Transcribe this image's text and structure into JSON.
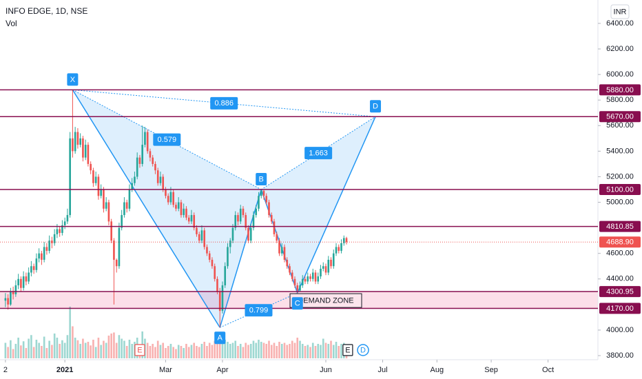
{
  "chart_data": {
    "type": "candlestick",
    "title": "INFO EDGE, 1D, NSE",
    "volume_label": "Vol",
    "currency": "INR",
    "up_color": "#26a69a",
    "down_color": "#ef5350",
    "level_color": "#880e4f",
    "pattern_color": "#2196f3",
    "ohlc": [
      [
        4230,
        4290,
        4180,
        4250
      ],
      [
        4250,
        4280,
        4160,
        4200
      ],
      [
        4200,
        4330,
        4190,
        4300
      ],
      [
        4300,
        4340,
        4240,
        4280
      ],
      [
        4280,
        4390,
        4260,
        4350
      ],
      [
        4350,
        4440,
        4320,
        4400
      ],
      [
        4400,
        4420,
        4300,
        4330
      ],
      [
        4330,
        4460,
        4310,
        4420
      ],
      [
        4420,
        4450,
        4350,
        4380
      ],
      [
        4380,
        4490,
        4360,
        4450
      ],
      [
        4450,
        4540,
        4420,
        4500
      ],
      [
        4500,
        4520,
        4440,
        4470
      ],
      [
        4470,
        4600,
        4450,
        4560
      ],
      [
        4560,
        4640,
        4530,
        4600
      ],
      [
        4600,
        4620,
        4510,
        4550
      ],
      [
        4550,
        4690,
        4530,
        4650
      ],
      [
        4650,
        4680,
        4590,
        4620
      ],
      [
        4620,
        4740,
        4600,
        4700
      ],
      [
        4700,
        4730,
        4640,
        4680
      ],
      [
        4680,
        4790,
        4660,
        4750
      ],
      [
        4750,
        4830,
        4720,
        4790
      ],
      [
        4790,
        4810,
        4730,
        4760
      ],
      [
        4760,
        4860,
        4740,
        4820
      ],
      [
        4820,
        4880,
        4790,
        4850
      ],
      [
        4850,
        4950,
        4830,
        4900
      ],
      [
        4900,
        5550,
        4880,
        5500
      ],
      [
        5500,
        5880,
        5350,
        5400
      ],
      [
        5400,
        5590,
        5380,
        5550
      ],
      [
        5550,
        5580,
        5420,
        5450
      ],
      [
        5450,
        5540,
        5430,
        5500
      ],
      [
        5500,
        5520,
        5320,
        5350
      ],
      [
        5350,
        5490,
        5330,
        5450
      ],
      [
        5450,
        5470,
        5280,
        5300
      ],
      [
        5300,
        5320,
        5220,
        5250
      ],
      [
        5250,
        5270,
        5120,
        5150
      ],
      [
        5150,
        5240,
        5130,
        5200
      ],
      [
        5200,
        5220,
        5020,
        5050
      ],
      [
        5050,
        5140,
        5030,
        5100
      ],
      [
        5100,
        5120,
        4920,
        4950
      ],
      [
        4950,
        5040,
        4930,
        5000
      ],
      [
        5000,
        5020,
        4820,
        4850
      ],
      [
        4850,
        4870,
        4680,
        4700
      ],
      [
        4700,
        4720,
        4200,
        4550
      ],
      [
        4550,
        4560,
        4450,
        4500
      ],
      [
        4500,
        4840,
        4480,
        4800
      ],
      [
        4800,
        4940,
        4780,
        4900
      ],
      [
        4900,
        5040,
        4880,
        5000
      ],
      [
        5000,
        5020,
        4920,
        4950
      ],
      [
        4950,
        5140,
        4930,
        5100
      ],
      [
        5100,
        5190,
        5080,
        5150
      ],
      [
        5150,
        5240,
        5130,
        5200
      ],
      [
        5200,
        5390,
        5180,
        5350
      ],
      [
        5350,
        5370,
        5270,
        5300
      ],
      [
        5300,
        5600,
        5280,
        5450
      ],
      [
        5450,
        5590,
        5430,
        5550
      ],
      [
        5550,
        5570,
        5380,
        5400
      ],
      [
        5400,
        5420,
        5320,
        5350
      ],
      [
        5350,
        5370,
        5280,
        5300
      ],
      [
        5300,
        5320,
        5220,
        5250
      ],
      [
        5250,
        5270,
        5130,
        5150
      ],
      [
        5150,
        5240,
        5130,
        5200
      ],
      [
        5200,
        5220,
        5080,
        5100
      ],
      [
        5100,
        5120,
        5030,
        5050
      ],
      [
        5050,
        5070,
        4980,
        5000
      ],
      [
        5000,
        5120,
        4980,
        5080
      ],
      [
        5080,
        5100,
        4960,
        4980
      ],
      [
        4980,
        5000,
        4930,
        4950
      ],
      [
        4950,
        5040,
        4930,
        5000
      ],
      [
        5000,
        5020,
        4880,
        4900
      ],
      [
        4900,
        4990,
        4880,
        4950
      ],
      [
        4950,
        4970,
        4860,
        4880
      ],
      [
        4880,
        4900,
        4830,
        4850
      ],
      [
        4850,
        4940,
        4830,
        4900
      ],
      [
        4900,
        4920,
        4780,
        4800
      ],
      [
        4800,
        4820,
        4730,
        4750
      ],
      [
        4750,
        4770,
        4680,
        4700
      ],
      [
        4700,
        4820,
        4680,
        4780
      ],
      [
        4780,
        4800,
        4630,
        4650
      ],
      [
        4650,
        4670,
        4580,
        4600
      ],
      [
        4600,
        4620,
        4530,
        4550
      ],
      [
        4550,
        4570,
        4480,
        4500
      ],
      [
        4500,
        4520,
        4380,
        4400
      ],
      [
        4400,
        4420,
        4280,
        4300
      ],
      [
        4300,
        4330,
        4020,
        4150
      ],
      [
        4150,
        4380,
        4130,
        4350
      ],
      [
        4350,
        4530,
        4330,
        4500
      ],
      [
        4500,
        4680,
        4480,
        4650
      ],
      [
        4650,
        4720,
        4600,
        4700
      ],
      [
        4700,
        4830,
        4680,
        4800
      ],
      [
        4800,
        4930,
        4780,
        4900
      ],
      [
        4900,
        4920,
        4820,
        4850
      ],
      [
        4850,
        4980,
        4830,
        4950
      ],
      [
        4950,
        4970,
        4880,
        4900
      ],
      [
        4900,
        4920,
        4780,
        4800
      ],
      [
        4800,
        4820,
        4680,
        4700
      ],
      [
        4700,
        4830,
        4680,
        4800
      ],
      [
        4800,
        4930,
        4780,
        4900
      ],
      [
        4900,
        4980,
        4880,
        4950
      ],
      [
        4950,
        5080,
        4930,
        5050
      ],
      [
        5050,
        5100,
        5030,
        5090
      ],
      [
        5090,
        5095,
        5020,
        5050
      ],
      [
        5050,
        5070,
        4980,
        5000
      ],
      [
        5000,
        5020,
        4880,
        4900
      ],
      [
        4900,
        4920,
        4830,
        4850
      ],
      [
        4850,
        4870,
        4730,
        4750
      ],
      [
        4750,
        4770,
        4680,
        4700
      ],
      [
        4700,
        4720,
        4580,
        4600
      ],
      [
        4600,
        4680,
        4580,
        4650
      ],
      [
        4650,
        4670,
        4530,
        4550
      ],
      [
        4550,
        4570,
        4480,
        4500
      ],
      [
        4500,
        4520,
        4430,
        4450
      ],
      [
        4450,
        4470,
        4380,
        4400
      ],
      [
        4400,
        4420,
        4330,
        4350
      ],
      [
        4350,
        4370,
        4290,
        4310
      ],
      [
        4310,
        4380,
        4300,
        4350
      ],
      [
        4350,
        4430,
        4330,
        4400
      ],
      [
        4400,
        4420,
        4360,
        4380
      ],
      [
        4380,
        4450,
        4360,
        4420
      ],
      [
        4420,
        4440,
        4380,
        4400
      ],
      [
        4400,
        4480,
        4380,
        4450
      ],
      [
        4450,
        4470,
        4360,
        4380
      ],
      [
        4380,
        4450,
        4360,
        4420
      ],
      [
        4420,
        4510,
        4400,
        4480
      ],
      [
        4480,
        4530,
        4460,
        4500
      ],
      [
        4500,
        4520,
        4430,
        4450
      ],
      [
        4450,
        4580,
        4430,
        4550
      ],
      [
        4550,
        4570,
        4480,
        4500
      ],
      [
        4500,
        4630,
        4480,
        4600
      ],
      [
        4600,
        4680,
        4580,
        4650
      ],
      [
        4650,
        4670,
        4600,
        4620
      ],
      [
        4620,
        4710,
        4600,
        4680
      ],
      [
        4680,
        4740,
        4660,
        4720
      ],
      [
        4720,
        4730,
        4670,
        4688.9
      ]
    ],
    "volume": [
      30,
      22,
      35,
      18,
      28,
      40,
      25,
      33,
      20,
      38,
      45,
      22,
      36,
      30,
      24,
      42,
      20,
      34,
      26,
      48,
      40,
      28,
      35,
      30,
      45,
      100,
      62,
      40,
      35,
      28,
      38,
      30,
      32,
      25,
      36,
      22,
      40,
      26,
      34,
      30,
      44,
      48,
      50,
      30,
      45,
      38,
      34,
      24,
      36,
      28,
      32,
      40,
      26,
      52,
      38,
      30,
      24,
      28,
      22,
      34,
      26,
      30,
      20,
      24,
      28,
      22,
      18,
      26,
      24,
      20,
      28,
      22,
      26,
      30,
      24,
      22,
      28,
      32,
      24,
      30,
      26,
      34,
      38,
      45,
      40,
      36,
      32,
      28,
      30,
      34,
      24,
      28,
      22,
      30,
      26,
      28,
      34,
      30,
      36,
      32,
      30,
      28,
      34,
      26,
      30,
      24,
      32,
      28,
      30,
      26,
      28,
      34,
      30,
      40,
      34,
      28,
      24,
      26,
      22,
      30,
      24,
      28,
      26,
      38,
      30,
      28,
      34,
      26,
      32,
      24,
      28,
      30,
      26
    ],
    "xlim": [
      -2.1,
      229.3
    ],
    "ylim": [
      3768,
      6583
    ],
    "xticks": [
      {
        "value": 0,
        "label": "2"
      },
      {
        "value": 23,
        "label": "2021"
      },
      {
        "value": 62,
        "label": "Mar"
      },
      {
        "value": 84,
        "label": "Apr"
      },
      {
        "value": 124,
        "label": "Jun"
      },
      {
        "value": 146,
        "label": "Jul"
      },
      {
        "value": 167,
        "label": "Aug"
      },
      {
        "value": 188,
        "label": "Sep"
      },
      {
        "value": 210,
        "label": "Oct"
      }
    ],
    "yticks": [
      {
        "value": 6400,
        "label": "6400.00"
      },
      {
        "value": 6200,
        "label": "6200.00"
      },
      {
        "value": 6000,
        "label": "6000.00"
      },
      {
        "value": 5800,
        "label": "5800.00"
      },
      {
        "value": 5600,
        "label": "5600.00"
      },
      {
        "value": 5400,
        "label": "5400.00"
      },
      {
        "value": 5200,
        "label": "5200.00"
      },
      {
        "value": 5000,
        "label": "5000.00"
      },
      {
        "value": 4600,
        "label": "4600.00"
      },
      {
        "value": 4400,
        "label": "4400.00"
      },
      {
        "value": 4000,
        "label": "4000.00"
      },
      {
        "value": 3800,
        "label": "3800.00"
      }
    ],
    "levels": [
      {
        "value": 5880,
        "label": "5880.00"
      },
      {
        "value": 5670,
        "label": "5670.00"
      },
      {
        "value": 5100,
        "label": "5100.00"
      },
      {
        "value": 4810.85,
        "label": "4810.85"
      },
      {
        "value": 4300.95,
        "label": "4300.95"
      },
      {
        "value": 4170,
        "label": "4170.00"
      }
    ],
    "last_price": {
      "value": 4688.9,
      "label": "4688.90"
    },
    "demand_zone": "DEMAND ZONE",
    "pattern": {
      "points": [
        {
          "label": "X",
          "x": 26,
          "y": 5880
        },
        {
          "label": "A",
          "x": 83,
          "y": 4020
        },
        {
          "label": "B",
          "x": 99,
          "y": 5100
        },
        {
          "label": "C",
          "x": 113,
          "y": 4290
        },
        {
          "label": "D",
          "x": 143.2,
          "y": 5670
        }
      ],
      "ratios": [
        0.886,
        0.579,
        1.663,
        0.799
      ]
    },
    "events": [
      {
        "x": 52,
        "label": "E"
      },
      {
        "x": 132.5,
        "label": "E"
      },
      {
        "x": 138.4,
        "label": "D"
      }
    ]
  }
}
